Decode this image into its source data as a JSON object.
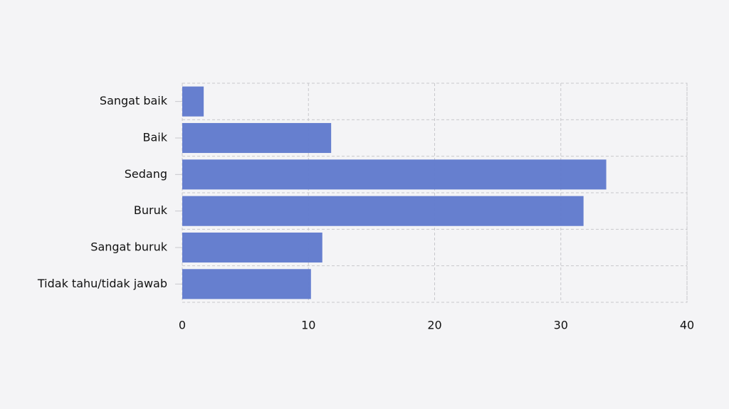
{
  "chart_data": {
    "type": "bar",
    "orientation": "horizontal",
    "categories": [
      "Sangat baik",
      "Baik",
      "Sedang",
      "Buruk",
      "Sangat buruk",
      "Tidak tahu/tidak jawab"
    ],
    "values": [
      1.7,
      11.8,
      33.6,
      31.8,
      11.1,
      10.2
    ],
    "color": "#617bcd",
    "xlim": [
      0,
      40
    ],
    "xticks": [
      0,
      10,
      20,
      30,
      40
    ],
    "grid": true
  }
}
